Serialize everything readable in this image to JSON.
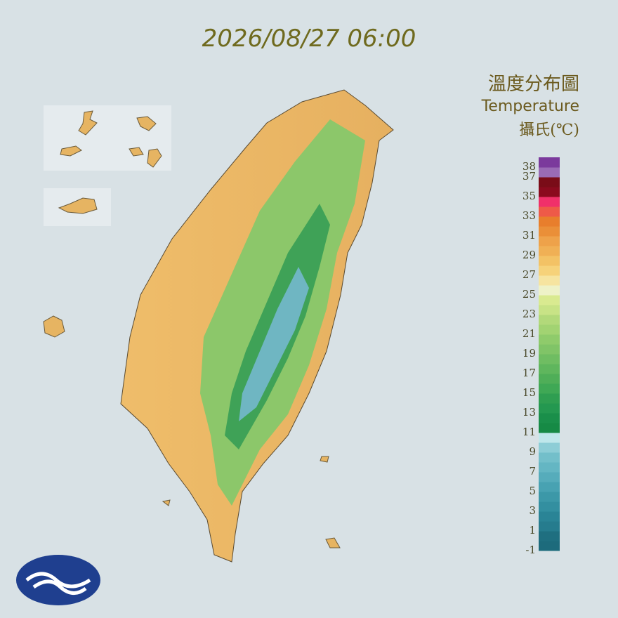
{
  "header": {
    "timestamp": "2026/08/27 06:00"
  },
  "legend": {
    "title": "溫度分布圖",
    "subtitle": "Temperature",
    "unit": "攝氏(℃)",
    "lim": [
      -1,
      39
    ],
    "ticks": [
      38,
      37,
      35,
      33,
      31,
      29,
      27,
      25,
      23,
      21,
      19,
      17,
      15,
      13,
      11,
      9,
      7,
      5,
      3,
      1,
      -1
    ],
    "colors": [
      "#1d6b7c",
      "#1f6f80",
      "#267c8e",
      "#2a8496",
      "#338fa0",
      "#3c98a8",
      "#48a2b2",
      "#56acbb",
      "#64b6c3",
      "#73bfca",
      "#8dcdd6",
      "#bfe7eb",
      "#168a45",
      "#1a8f4a",
      "#249850",
      "#2f9e51",
      "#3fa855",
      "#4fae58",
      "#5fb65d",
      "#6fbd62",
      "#80c467",
      "#8fcb6b",
      "#a2d372",
      "#b2d97a",
      "#c8e386",
      "#d9ea90",
      "#eef2c8",
      "#f6e4a0",
      "#f6d27a",
      "#f3c265",
      "#f0b055",
      "#eea24a",
      "#ea8f38",
      "#e87e2c",
      "#ee5a48",
      "#f0306a",
      "#8b0a1e",
      "#7a0c18",
      "#9a6bb5",
      "#7b3a9c"
    ]
  }
}
